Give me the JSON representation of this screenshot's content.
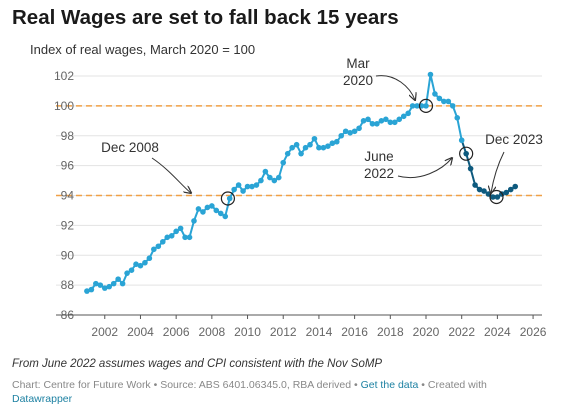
{
  "chart_data": {
    "type": "line",
    "title": "Real Wages are set to fall back 15 years",
    "subtitle": "Index of real wages, March 2020 = 100",
    "ylim": [
      86,
      102
    ],
    "yticks": [
      86,
      88,
      90,
      92,
      94,
      96,
      98,
      100,
      102
    ],
    "xlim": [
      2000.5,
      2026.5
    ],
    "xticks": [
      2002,
      2004,
      2006,
      2008,
      2010,
      2012,
      2014,
      2016,
      2018,
      2020,
      2022,
      2024,
      2026
    ],
    "reference_lines": [
      100,
      94
    ],
    "grid": "horizontal",
    "colors": {
      "actual": "#2aa4d5",
      "forecast": "#0e5a7e",
      "reference": "#f0a046",
      "annotation": "#333333"
    },
    "series": [
      {
        "values": [
          [
            2001.0,
            87.6
          ],
          [
            2001.25,
            87.7
          ],
          [
            2001.5,
            88.1
          ],
          [
            2001.75,
            88.0
          ],
          [
            2002.0,
            87.8
          ],
          [
            2002.25,
            87.9
          ],
          [
            2002.5,
            88.1
          ],
          [
            2002.75,
            88.4
          ],
          [
            2003.0,
            88.1
          ],
          [
            2003.25,
            88.8
          ],
          [
            2003.5,
            89.0
          ],
          [
            2003.75,
            89.4
          ],
          [
            2004.0,
            89.3
          ],
          [
            2004.25,
            89.5
          ],
          [
            2004.5,
            89.8
          ],
          [
            2004.75,
            90.4
          ],
          [
            2005.0,
            90.6
          ],
          [
            2005.25,
            90.9
          ],
          [
            2005.5,
            91.2
          ],
          [
            2005.75,
            91.3
          ],
          [
            2006.0,
            91.6
          ],
          [
            2006.25,
            91.8
          ],
          [
            2006.5,
            91.2
          ],
          [
            2006.75,
            91.2
          ],
          [
            2007.0,
            92.3
          ],
          [
            2007.25,
            93.1
          ],
          [
            2007.5,
            92.9
          ],
          [
            2007.75,
            93.2
          ],
          [
            2008.0,
            93.3
          ],
          [
            2008.25,
            93.0
          ],
          [
            2008.5,
            92.8
          ],
          [
            2008.75,
            92.6
          ],
          [
            2009.0,
            93.8
          ],
          [
            2009.25,
            94.4
          ],
          [
            2009.5,
            94.7
          ],
          [
            2009.75,
            94.3
          ],
          [
            2010.0,
            94.6
          ],
          [
            2010.25,
            94.6
          ],
          [
            2010.5,
            94.7
          ],
          [
            2010.75,
            95.0
          ],
          [
            2011.0,
            95.6
          ],
          [
            2011.25,
            95.2
          ],
          [
            2011.5,
            95.0
          ],
          [
            2011.75,
            95.2
          ],
          [
            2012.0,
            96.2
          ],
          [
            2012.25,
            96.8
          ],
          [
            2012.5,
            97.2
          ],
          [
            2012.75,
            97.4
          ],
          [
            2013.0,
            96.8
          ],
          [
            2013.25,
            97.2
          ],
          [
            2013.5,
            97.4
          ],
          [
            2013.75,
            97.8
          ],
          [
            2014.0,
            97.2
          ],
          [
            2014.25,
            97.2
          ],
          [
            2014.5,
            97.3
          ],
          [
            2014.75,
            97.5
          ],
          [
            2015.0,
            97.6
          ],
          [
            2015.25,
            98.0
          ],
          [
            2015.5,
            98.3
          ],
          [
            2015.75,
            98.2
          ],
          [
            2016.0,
            98.3
          ],
          [
            2016.25,
            98.5
          ],
          [
            2016.5,
            99.0
          ],
          [
            2016.75,
            99.1
          ],
          [
            2017.0,
            98.8
          ],
          [
            2017.25,
            98.8
          ],
          [
            2017.5,
            99.0
          ],
          [
            2017.75,
            99.1
          ],
          [
            2018.0,
            98.9
          ],
          [
            2018.25,
            98.9
          ],
          [
            2018.5,
            99.1
          ],
          [
            2018.75,
            99.3
          ],
          [
            2019.0,
            99.5
          ],
          [
            2019.25,
            100.0
          ],
          [
            2019.5,
            100.0
          ],
          [
            2019.75,
            100.0
          ],
          [
            2020.0,
            100.0
          ],
          [
            2020.25,
            102.1
          ],
          [
            2020.5,
            100.8
          ],
          [
            2020.75,
            100.5
          ],
          [
            2021.0,
            100.3
          ],
          [
            2021.25,
            100.3
          ],
          [
            2021.5,
            100.0
          ],
          [
            2021.75,
            99.2
          ],
          [
            2022.0,
            97.7
          ]
        ]
      },
      {
        "values": [
          [
            2022.25,
            96.8
          ],
          [
            2022.5,
            95.8
          ],
          [
            2022.75,
            94.7
          ],
          [
            2023.0,
            94.4
          ],
          [
            2023.25,
            94.3
          ],
          [
            2023.5,
            94.1
          ],
          [
            2023.75,
            93.9
          ],
          [
            2024.0,
            93.9
          ],
          [
            2024.25,
            94.1
          ],
          [
            2024.5,
            94.2
          ],
          [
            2024.75,
            94.4
          ],
          [
            2025.0,
            94.6
          ]
        ]
      }
    ],
    "annotations": [
      {
        "label_lines": [
          "Dec 2008"
        ],
        "x": 2008.9,
        "y": 93.8
      },
      {
        "label_lines": [
          "Mar",
          "2020"
        ],
        "x": 2020.0,
        "y": 100.0
      },
      {
        "label_lines": [
          "June",
          "2022"
        ],
        "x": 2022.25,
        "y": 96.8
      },
      {
        "label_lines": [
          "Dec 2023"
        ],
        "x": 2023.95,
        "y": 93.9
      }
    ],
    "note": "From June 2022 assumes wages and CPI consistent with the Nov SoMP"
  },
  "footer": {
    "prefix": "Chart: Centre for Future Work • Source: ABS 6401.06345.0, RBA derived • ",
    "link_data": "Get the data",
    "middle": " • Created with ",
    "link_dw": "Datawrapper"
  }
}
